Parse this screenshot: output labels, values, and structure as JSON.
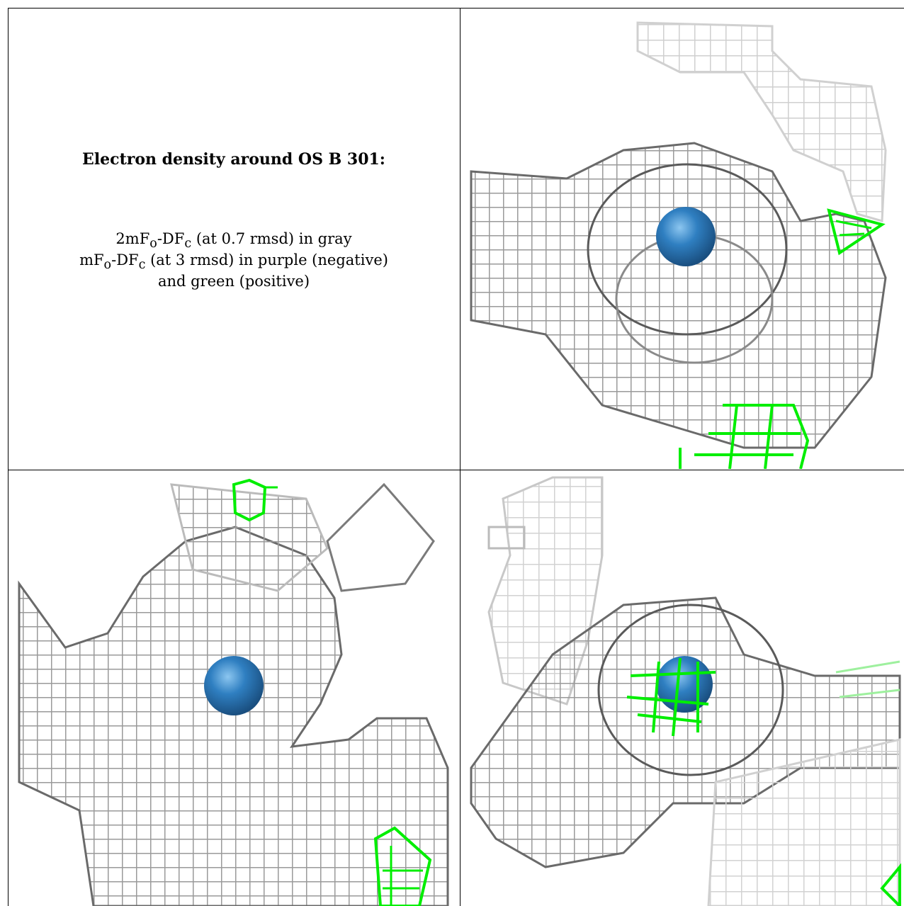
{
  "caption": {
    "title": "Electron density around OS B 301:",
    "line1": "2mFo-DFc (at 0.7 rmsd) in gray",
    "line2": "mFo-DFc (at 3 rmsd) in purple (negative)",
    "line3": "and green (positive)"
  },
  "colors": {
    "gray_mesh_dark": "#4d4d4d",
    "gray_mesh_light": "#d9d9d9",
    "positive_mesh": "#00ff00",
    "atom": "#2f7fc1"
  }
}
